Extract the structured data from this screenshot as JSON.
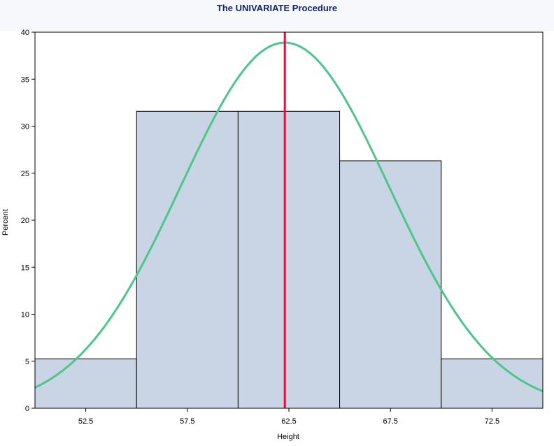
{
  "page": {
    "title": "The UNIVARIATE Procedure"
  },
  "chart_data": {
    "type": "bar",
    "title": "The UNIVARIATE Procedure",
    "xlabel": "Height",
    "ylabel": "Percent",
    "bins": [
      {
        "from": 50,
        "to": 55,
        "value": 5.26
      },
      {
        "from": 55,
        "to": 60,
        "value": 31.58
      },
      {
        "from": 60,
        "to": 65,
        "value": 31.58
      },
      {
        "from": 65,
        "to": 70,
        "value": 26.32
      },
      {
        "from": 70,
        "to": 75,
        "value": 5.26
      }
    ],
    "xlim": [
      50,
      75
    ],
    "ylim": [
      0,
      40
    ],
    "x_ticks": [
      "52.5",
      "57.5",
      "62.5",
      "67.5",
      "72.5"
    ],
    "x_tick_values": [
      52.5,
      57.5,
      62.5,
      67.5,
      72.5
    ],
    "y_ticks": [
      "0",
      "5",
      "10",
      "15",
      "20",
      "25",
      "30",
      "35",
      "40"
    ],
    "y_tick_values": [
      0,
      5,
      10,
      15,
      20,
      25,
      30,
      35,
      40
    ],
    "normal_curve": {
      "mean": 62.3,
      "std_dev": 5.13
    },
    "reference_line_x": 62.3,
    "grid": false,
    "colors": {
      "bar_fill": "#c9d5e4",
      "bar_edge": "#000000",
      "curve": "#4cc68b",
      "reference_line": "#e0103e",
      "title": "#112277"
    }
  }
}
